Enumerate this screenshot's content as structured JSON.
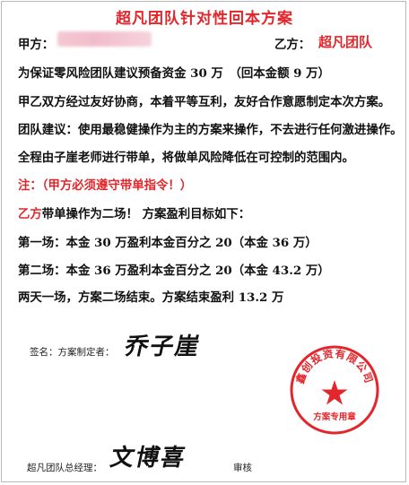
{
  "document": {
    "title": "超凡团队针对性回本方案",
    "party_a_label": "甲方：",
    "party_b_label": "乙方：",
    "party_b_name": "超凡团队",
    "line_1": "为保证零风险团队建议预备资金 30 万　（回本金额 9 万）",
    "line_2": "甲乙双方经过友好协商，本着平等互利，友好合作意愿制定本次方案。",
    "line_3": "团队建议：使用最稳健操作为主的方案来操作，不去进行任何激进操作。",
    "line_4": "全程由子崖老师进行带单，将做单风险降低在可控制的范围内。",
    "note": "注：（甲方必须遵守带单指令！）",
    "line_5_party": "乙方",
    "line_5_rest": "带单操作为二场！ 方案盈利目标如下：",
    "session_1": "第一场：本金 30 万盈利本金百分之 20（本金 36 万）",
    "session_2": "第二场：本金 36 万盈利本金百分之 20（本金 43.2 万）",
    "summary": "两天一场，方案二场结束。方案结束盈利 13.2 万",
    "sign_label": "签名：方案制定者：",
    "signature_1": "乔子崖",
    "manager_label": "超凡团队总经理：",
    "signature_2": "文博喜",
    "review_label": "审核",
    "seal_text_arc": "鑫创投资有限公司",
    "seal_text_bottom": "方案专用章",
    "seal_color": "#e3262b"
  }
}
